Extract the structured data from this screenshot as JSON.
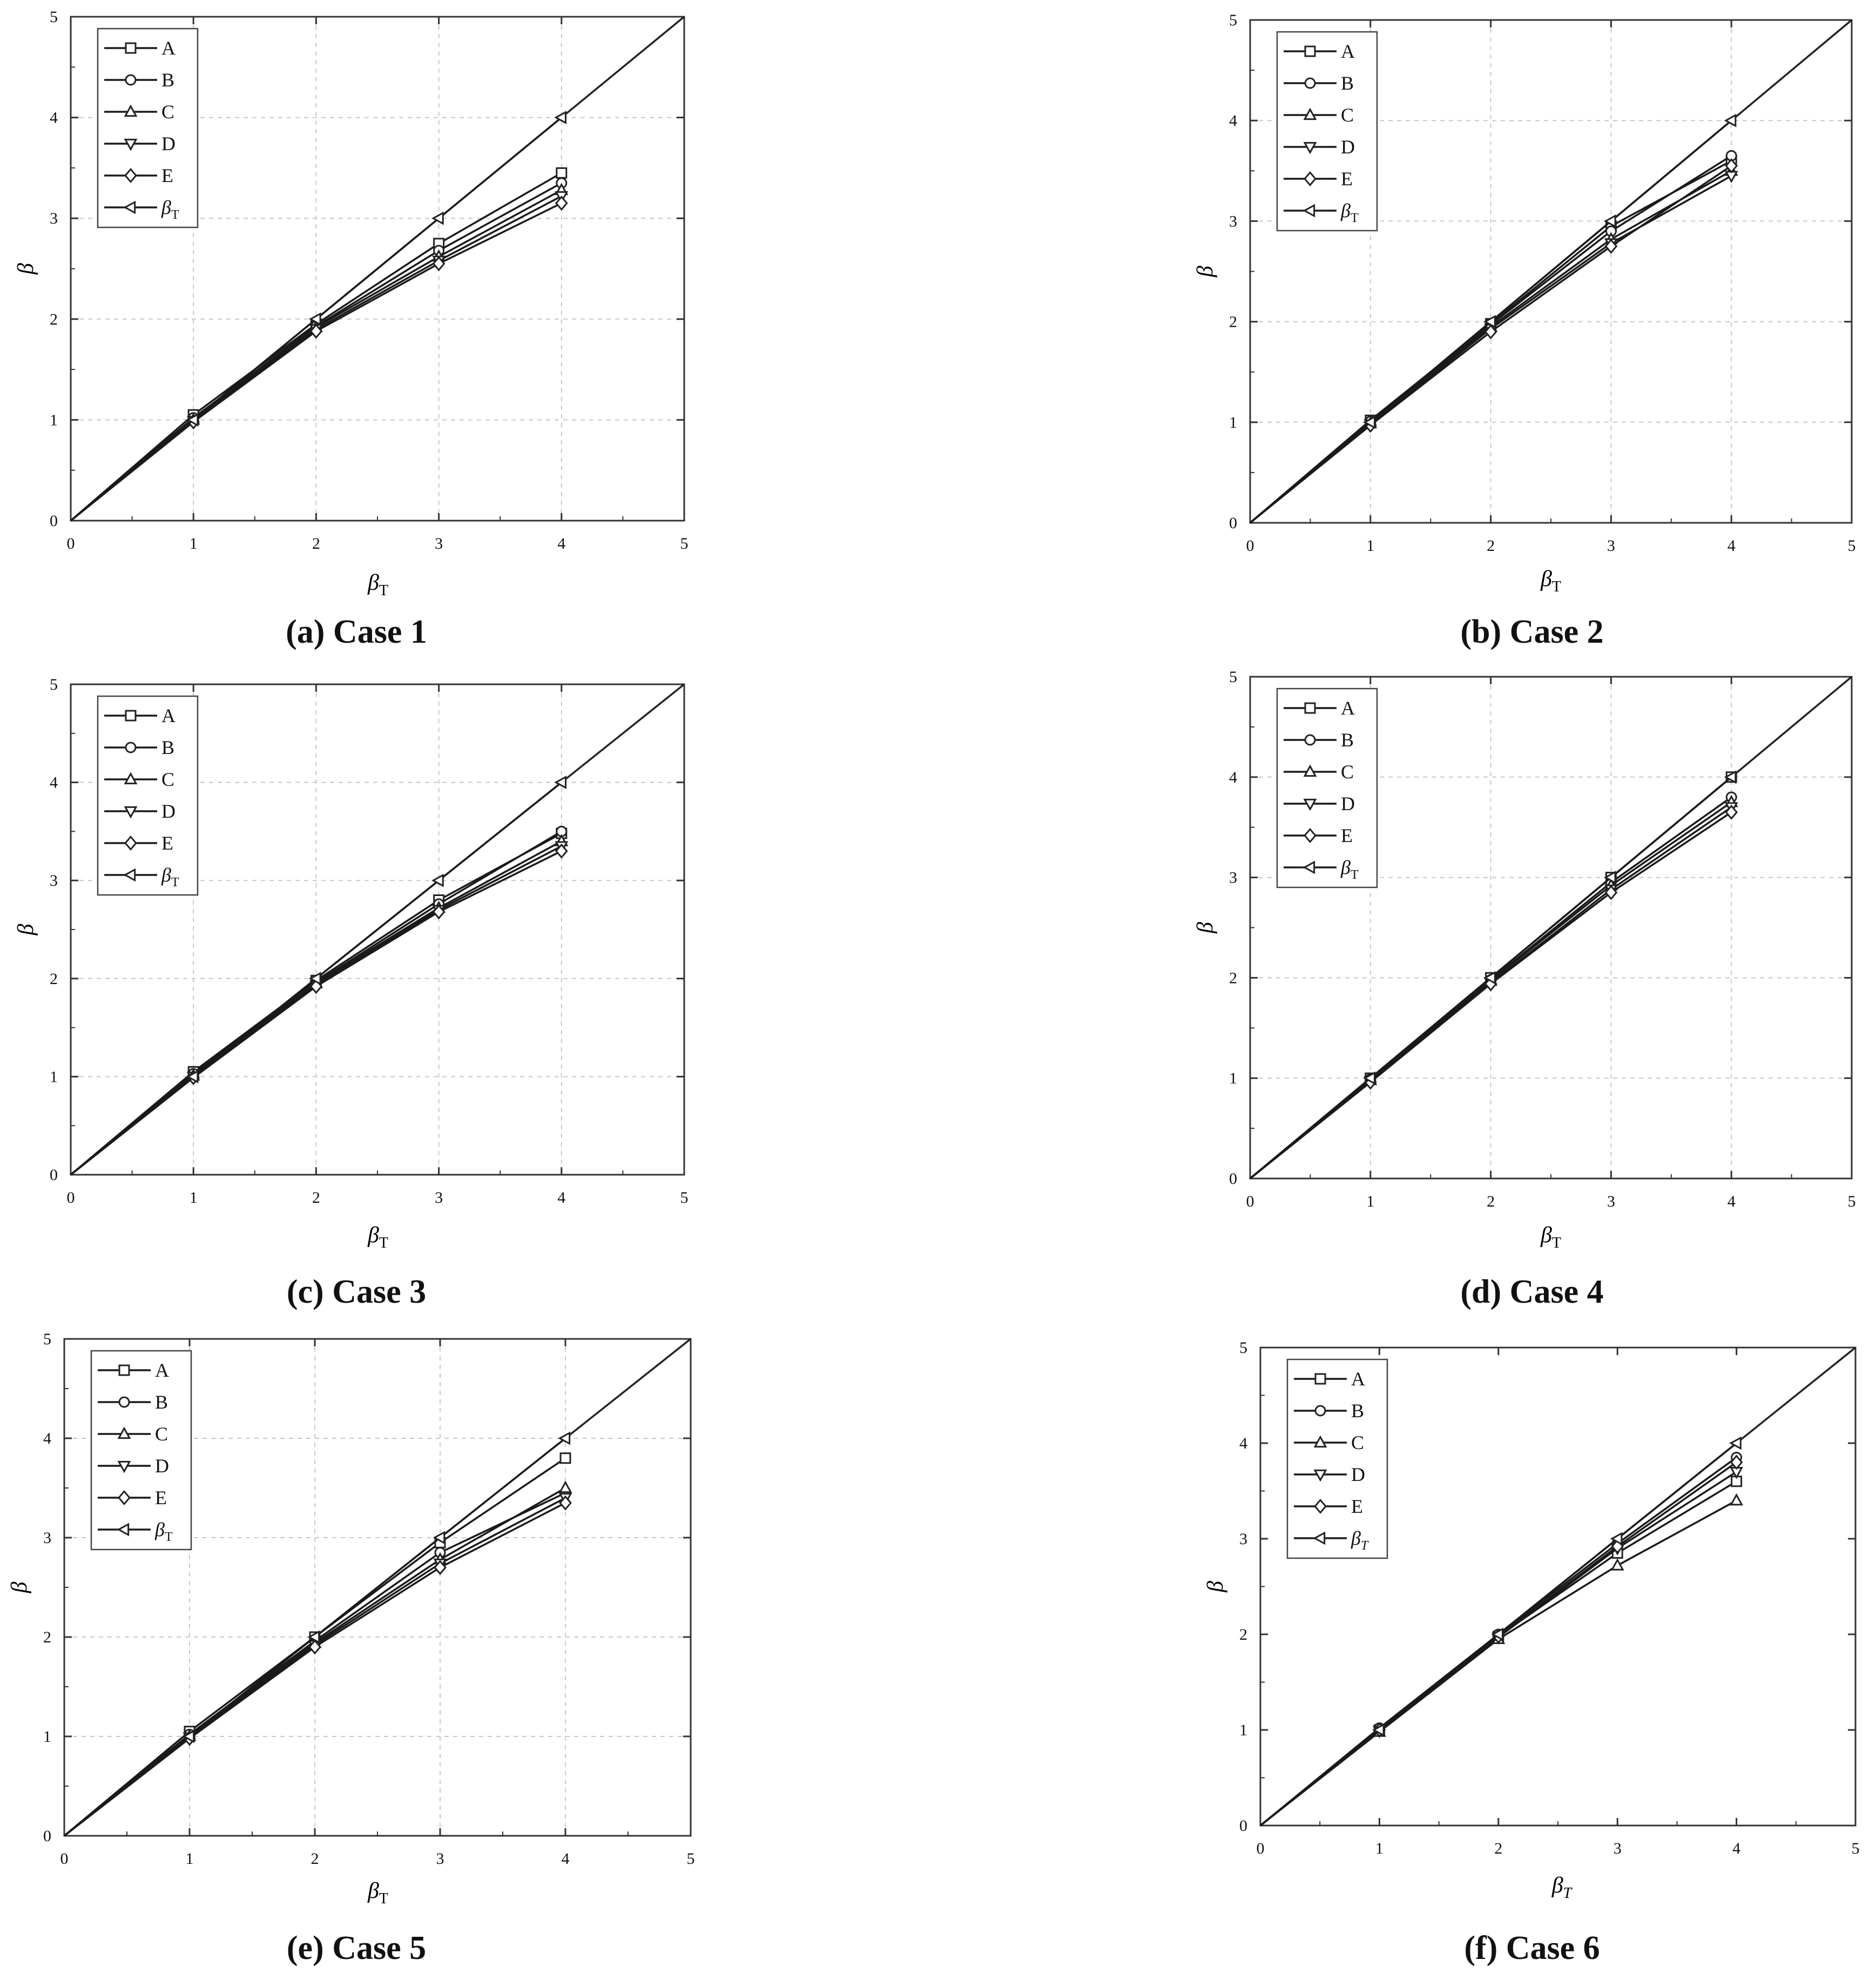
{
  "figure": {
    "panels": [
      {
        "caption": "(a) Case 1",
        "ylabel": "β",
        "xlabel_main": "β",
        "xlabel_sub": "T",
        "legend_sub": "T",
        "legend_italic_sub": false
      },
      {
        "caption": "(b) Case 2",
        "ylabel": "β",
        "xlabel_main": "β",
        "xlabel_sub": "T",
        "legend_sub": "T",
        "legend_italic_sub": false
      },
      {
        "caption": "(c) Case 3",
        "ylabel": "β",
        "xlabel_main": "β",
        "xlabel_sub": "T",
        "legend_sub": "T",
        "legend_italic_sub": false
      },
      {
        "caption": "(d) Case 4",
        "ylabel": "β",
        "xlabel_main": "β",
        "xlabel_sub": "T",
        "legend_sub": "T",
        "legend_italic_sub": false
      },
      {
        "caption": "(e) Case 5",
        "ylabel": "β",
        "xlabel_main": "β",
        "xlabel_sub": "T",
        "legend_sub": "T",
        "legend_italic_sub": false
      },
      {
        "caption": "(f) Case 6",
        "ylabel": "β",
        "xlabel_main": "β",
        "xlabel_sub": "T",
        "legend_sub": "T",
        "legend_italic_sub": true
      }
    ]
  },
  "chart_data": [
    {
      "type": "line",
      "title": "(a) Case 1",
      "xlabel": "βT",
      "ylabel": "β",
      "xlim": [
        0,
        5
      ],
      "ylim": [
        0,
        5
      ],
      "ticks": [
        0,
        1,
        2,
        3,
        4,
        5
      ],
      "grid": true,
      "legend": "top-left",
      "x": [
        1,
        2,
        3,
        4
      ],
      "series": [
        {
          "name": "A",
          "marker": "square",
          "values": [
            1.05,
            1.95,
            2.75,
            3.45
          ]
        },
        {
          "name": "B",
          "marker": "circle",
          "values": [
            1.02,
            1.93,
            2.68,
            3.35
          ]
        },
        {
          "name": "C",
          "marker": "triangle-up",
          "values": [
            1.0,
            1.92,
            2.62,
            3.28
          ]
        },
        {
          "name": "D",
          "marker": "triangle-down",
          "values": [
            0.99,
            1.9,
            2.58,
            3.22
          ]
        },
        {
          "name": "E",
          "marker": "diamond",
          "values": [
            0.98,
            1.88,
            2.55,
            3.15
          ]
        },
        {
          "name": "βT",
          "marker": "triangle-left",
          "values": [
            1.0,
            2.0,
            3.0,
            4.0
          ]
        }
      ]
    },
    {
      "type": "line",
      "title": "(b) Case 2",
      "xlabel": "βT",
      "ylabel": "β",
      "xlim": [
        0,
        5
      ],
      "ylim": [
        0,
        5
      ],
      "ticks": [
        0,
        1,
        2,
        3,
        4,
        5
      ],
      "grid": true,
      "legend": "top-left",
      "x": [
        1,
        2,
        3,
        4
      ],
      "series": [
        {
          "name": "A",
          "marker": "square",
          "values": [
            1.02,
            1.98,
            2.95,
            3.6
          ]
        },
        {
          "name": "B",
          "marker": "circle",
          "values": [
            1.01,
            1.97,
            2.9,
            3.65
          ]
        },
        {
          "name": "C",
          "marker": "triangle-up",
          "values": [
            0.99,
            1.95,
            2.82,
            3.5
          ]
        },
        {
          "name": "D",
          "marker": "triangle-down",
          "values": [
            0.98,
            1.93,
            2.78,
            3.45
          ]
        },
        {
          "name": "E",
          "marker": "diamond",
          "values": [
            0.97,
            1.9,
            2.75,
            3.55
          ]
        },
        {
          "name": "βT",
          "marker": "triangle-left",
          "values": [
            1.0,
            2.0,
            3.0,
            4.0
          ]
        }
      ]
    },
    {
      "type": "line",
      "title": "(c) Case 3",
      "xlabel": "βT",
      "ylabel": "β",
      "xlim": [
        0,
        5
      ],
      "ylim": [
        0,
        5
      ],
      "ticks": [
        0,
        1,
        2,
        3,
        4,
        5
      ],
      "grid": true,
      "legend": "top-left",
      "x": [
        1,
        2,
        3,
        4
      ],
      "series": [
        {
          "name": "A",
          "marker": "square",
          "values": [
            1.05,
            1.98,
            2.8,
            3.48
          ]
        },
        {
          "name": "B",
          "marker": "circle",
          "values": [
            1.03,
            1.96,
            2.76,
            3.5
          ]
        },
        {
          "name": "C",
          "marker": "triangle-up",
          "values": [
            1.01,
            1.95,
            2.72,
            3.4
          ]
        },
        {
          "name": "D",
          "marker": "triangle-down",
          "values": [
            1.0,
            1.93,
            2.7,
            3.35
          ]
        },
        {
          "name": "E",
          "marker": "diamond",
          "values": [
            0.99,
            1.92,
            2.68,
            3.3
          ]
        },
        {
          "name": "βT",
          "marker": "triangle-left",
          "values": [
            1.0,
            2.0,
            3.0,
            4.0
          ]
        }
      ]
    },
    {
      "type": "line",
      "title": "(d) Case 4",
      "xlabel": "βT",
      "ylabel": "β",
      "xlim": [
        0,
        5
      ],
      "ylim": [
        0,
        5
      ],
      "ticks": [
        0,
        1,
        2,
        3,
        4,
        5
      ],
      "grid": true,
      "legend": "top-left",
      "x": [
        1,
        2,
        3,
        4
      ],
      "series": [
        {
          "name": "A",
          "marker": "square",
          "values": [
            1.0,
            2.0,
            3.0,
            4.0
          ]
        },
        {
          "name": "B",
          "marker": "circle",
          "values": [
            0.99,
            1.98,
            2.95,
            3.8
          ]
        },
        {
          "name": "C",
          "marker": "triangle-up",
          "values": [
            0.98,
            1.97,
            2.92,
            3.75
          ]
        },
        {
          "name": "D",
          "marker": "triangle-down",
          "values": [
            0.97,
            1.95,
            2.88,
            3.7
          ]
        },
        {
          "name": "E",
          "marker": "diamond",
          "values": [
            0.96,
            1.94,
            2.85,
            3.65
          ]
        },
        {
          "name": "βT",
          "marker": "triangle-left",
          "values": [
            1.0,
            2.0,
            3.0,
            4.0
          ]
        }
      ]
    },
    {
      "type": "line",
      "title": "(e) Case 5",
      "xlabel": "βT",
      "ylabel": "β",
      "xlim": [
        0,
        5
      ],
      "ylim": [
        0,
        5
      ],
      "ticks": [
        0,
        1,
        2,
        3,
        4,
        5
      ],
      "grid": true,
      "legend": "top-left",
      "x": [
        1,
        2,
        3,
        4
      ],
      "series": [
        {
          "name": "A",
          "marker": "square",
          "values": [
            1.05,
            2.0,
            2.95,
            3.8
          ]
        },
        {
          "name": "B",
          "marker": "circle",
          "values": [
            1.02,
            1.96,
            2.85,
            3.45
          ]
        },
        {
          "name": "C",
          "marker": "triangle-up",
          "values": [
            1.0,
            1.94,
            2.78,
            3.5
          ]
        },
        {
          "name": "D",
          "marker": "triangle-down",
          "values": [
            0.99,
            1.92,
            2.74,
            3.4
          ]
        },
        {
          "name": "E",
          "marker": "diamond",
          "values": [
            0.98,
            1.9,
            2.7,
            3.35
          ]
        },
        {
          "name": "βT",
          "marker": "triangle-left",
          "values": [
            1.0,
            2.0,
            3.0,
            4.0
          ]
        }
      ]
    },
    {
      "type": "line",
      "title": "(f) Case 6",
      "xlabel": "βT",
      "ylabel": "β",
      "xlim": [
        0,
        5
      ],
      "ylim": [
        0,
        5
      ],
      "ticks": [
        0,
        1,
        2,
        3,
        4,
        5
      ],
      "grid": false,
      "legend": "top-left",
      "x": [
        1,
        2,
        3,
        4
      ],
      "series": [
        {
          "name": "A",
          "marker": "square",
          "values": [
            1.0,
            1.98,
            2.85,
            3.6
          ]
        },
        {
          "name": "B",
          "marker": "circle",
          "values": [
            1.02,
            2.0,
            2.95,
            3.85
          ]
        },
        {
          "name": "C",
          "marker": "triangle-up",
          "values": [
            0.98,
            1.95,
            2.72,
            3.4
          ]
        },
        {
          "name": "D",
          "marker": "triangle-down",
          "values": [
            0.99,
            1.97,
            2.9,
            3.7
          ]
        },
        {
          "name": "E",
          "marker": "diamond",
          "values": [
            1.0,
            1.98,
            2.92,
            3.8
          ]
        },
        {
          "name": "βT",
          "marker": "triangle-left",
          "values": [
            1.0,
            2.0,
            3.0,
            4.0
          ]
        }
      ]
    }
  ]
}
